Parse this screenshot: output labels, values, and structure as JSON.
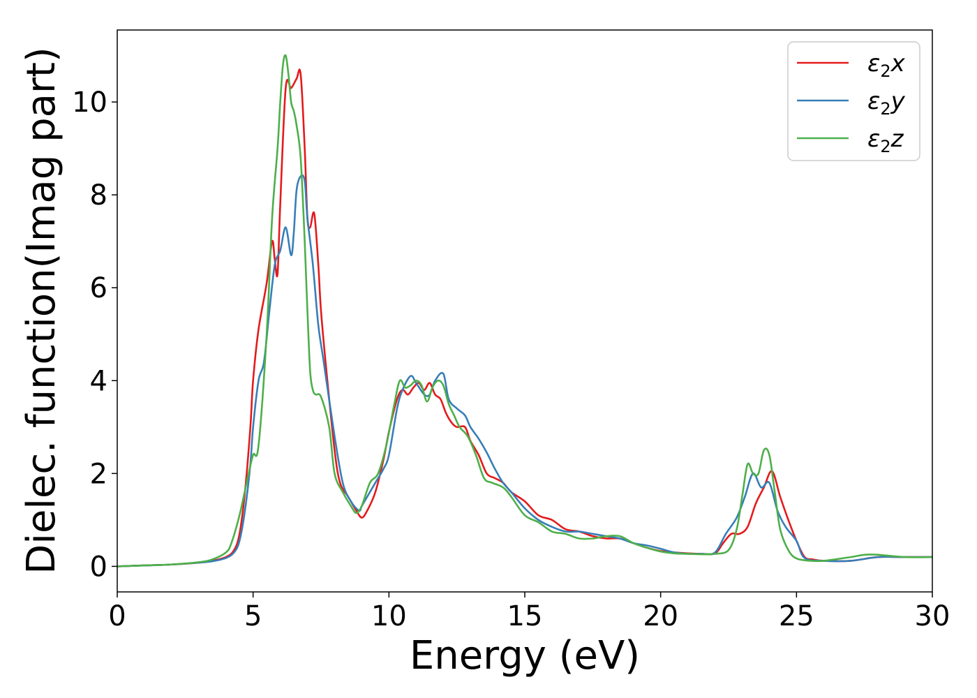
{
  "chart_data": {
    "type": "line",
    "title": "",
    "xlabel": "Energy (eV)",
    "ylabel": "Dielec. function(Imag part)",
    "xlim": [
      0,
      30
    ],
    "ylim": [
      -0.55,
      11.55
    ],
    "xticks": [
      0,
      5,
      10,
      15,
      20,
      25,
      30
    ],
    "yticks": [
      0,
      2,
      4,
      6,
      8,
      10
    ],
    "grid": false,
    "legend_position": "top-right",
    "series": [
      {
        "name": "ε₂x",
        "legend_base": "ε",
        "legend_sub": "2",
        "legend_suffix": "x",
        "color": "#e41a1c",
        "x": [
          0,
          1,
          2,
          3,
          3.5,
          4,
          4.3,
          4.5,
          4.7,
          4.9,
          5.0,
          5.2,
          5.5,
          5.7,
          5.8,
          5.9,
          6.0,
          6.2,
          6.4,
          6.6,
          6.75,
          6.9,
          7.0,
          7.1,
          7.25,
          7.4,
          7.5,
          7.7,
          8.0,
          8.2,
          8.5,
          8.8,
          9.0,
          9.2,
          9.5,
          9.8,
          10.0,
          10.3,
          10.5,
          10.7,
          10.9,
          11.1,
          11.3,
          11.5,
          11.7,
          11.9,
          12.1,
          12.3,
          12.5,
          12.8,
          13.0,
          13.3,
          13.6,
          13.9,
          14.2,
          14.5,
          15.0,
          15.5,
          16.0,
          16.5,
          17.0,
          17.5,
          18.0,
          18.5,
          19.0,
          19.5,
          20.0,
          20.5,
          21.0,
          21.5,
          22.0,
          22.3,
          22.6,
          22.9,
          23.2,
          23.5,
          23.8,
          24.1,
          24.4,
          24.7,
          25.0,
          25.3,
          25.6,
          26.0,
          27.0,
          28.0,
          29.0,
          30.0
        ],
        "y": [
          0,
          0.02,
          0.04,
          0.08,
          0.12,
          0.2,
          0.35,
          0.7,
          1.6,
          3.0,
          4.0,
          5.1,
          6.1,
          7.0,
          6.6,
          6.3,
          7.8,
          10.3,
          10.3,
          10.5,
          10.6,
          9.0,
          7.5,
          7.3,
          7.6,
          6.5,
          5.5,
          4.2,
          2.5,
          1.8,
          1.5,
          1.2,
          1.05,
          1.2,
          1.6,
          2.3,
          2.9,
          3.6,
          3.8,
          3.7,
          3.85,
          3.95,
          3.8,
          3.95,
          3.7,
          3.6,
          3.3,
          3.1,
          3.0,
          3.0,
          2.7,
          2.4,
          2.0,
          1.9,
          1.8,
          1.6,
          1.4,
          1.1,
          1.0,
          0.8,
          0.75,
          0.65,
          0.6,
          0.6,
          0.5,
          0.4,
          0.33,
          0.3,
          0.28,
          0.27,
          0.28,
          0.5,
          0.7,
          0.7,
          0.85,
          1.35,
          1.7,
          2.05,
          1.5,
          1.0,
          0.55,
          0.2,
          0.15,
          0.12,
          0.12,
          0.2,
          0.2,
          0.2
        ]
      },
      {
        "name": "ε₂y",
        "legend_base": "ε",
        "legend_sub": "2",
        "legend_suffix": "y",
        "color": "#377eb8",
        "x": [
          0,
          1,
          2,
          3,
          3.5,
          4,
          4.3,
          4.5,
          4.7,
          4.9,
          5.0,
          5.2,
          5.4,
          5.6,
          5.8,
          6.0,
          6.2,
          6.4,
          6.5,
          6.6,
          6.75,
          6.9,
          7.0,
          7.2,
          7.4,
          7.6,
          8.0,
          8.3,
          8.6,
          8.9,
          9.0,
          9.2,
          9.5,
          9.8,
          10.0,
          10.3,
          10.5,
          10.8,
          11.0,
          11.3,
          11.5,
          11.7,
          12.0,
          12.2,
          12.5,
          12.8,
          13.0,
          13.3,
          13.6,
          13.9,
          14.2,
          14.5,
          15.0,
          15.5,
          16.0,
          16.5,
          17.0,
          17.5,
          18.0,
          18.5,
          19.0,
          19.5,
          20.0,
          20.5,
          21.0,
          21.5,
          22.0,
          22.4,
          22.8,
          23.1,
          23.4,
          23.7,
          24.0,
          24.3,
          24.6,
          25.0,
          25.3,
          26.0,
          27.0,
          28.0,
          29.0,
          30.0
        ],
        "y": [
          0,
          0.02,
          0.04,
          0.08,
          0.11,
          0.18,
          0.3,
          0.55,
          1.2,
          2.2,
          3.0,
          4.0,
          4.4,
          5.5,
          6.5,
          6.8,
          7.3,
          6.7,
          7.2,
          8.1,
          8.4,
          8.3,
          7.5,
          6.5,
          5.2,
          4.4,
          2.8,
          1.8,
          1.4,
          1.2,
          1.3,
          1.5,
          1.8,
          2.1,
          2.4,
          3.4,
          3.8,
          4.1,
          3.95,
          3.7,
          3.7,
          4.0,
          4.15,
          3.6,
          3.4,
          3.25,
          3.0,
          2.75,
          2.45,
          2.1,
          1.8,
          1.6,
          1.25,
          1.0,
          0.85,
          0.75,
          0.75,
          0.7,
          0.65,
          0.6,
          0.5,
          0.45,
          0.38,
          0.3,
          0.27,
          0.27,
          0.3,
          0.7,
          1.05,
          1.5,
          2.0,
          1.7,
          1.8,
          1.2,
          0.85,
          0.55,
          0.18,
          0.12,
          0.12,
          0.2,
          0.2,
          0.2
        ]
      },
      {
        "name": "ε₂z",
        "legend_base": "ε",
        "legend_sub": "2",
        "legend_suffix": "z",
        "color": "#4daf4a",
        "x": [
          0,
          1,
          2,
          3,
          3.5,
          4,
          4.2,
          4.5,
          4.8,
          5.0,
          5.2,
          5.5,
          5.7,
          5.9,
          6.0,
          6.1,
          6.2,
          6.3,
          6.4,
          6.5,
          6.6,
          6.75,
          6.9,
          7.0,
          7.1,
          7.2,
          7.3,
          7.5,
          7.8,
          8.0,
          8.3,
          8.6,
          8.8,
          9.0,
          9.3,
          9.6,
          9.9,
          10.2,
          10.4,
          10.6,
          10.8,
          11.0,
          11.2,
          11.4,
          11.6,
          11.8,
          12.0,
          12.2,
          12.4,
          12.6,
          12.9,
          13.2,
          13.5,
          13.8,
          14.2,
          14.5,
          15.0,
          15.5,
          16.0,
          16.5,
          17.0,
          17.5,
          18.0,
          18.5,
          19.0,
          19.5,
          20.0,
          20.5,
          21.0,
          21.5,
          22.0,
          22.5,
          22.8,
          23.0,
          23.2,
          23.4,
          23.6,
          23.8,
          24.0,
          24.2,
          24.4,
          24.7,
          25.0,
          25.5,
          26.0,
          27.0,
          27.5,
          28.0,
          29.0,
          30.0
        ],
        "y": [
          0,
          0.02,
          0.04,
          0.09,
          0.15,
          0.3,
          0.5,
          1.1,
          1.9,
          2.4,
          2.6,
          5.0,
          7.5,
          9.0,
          10.0,
          10.8,
          11.0,
          10.6,
          10.0,
          9.8,
          9.5,
          8.8,
          7.0,
          5.5,
          4.2,
          3.8,
          3.7,
          3.65,
          3.0,
          2.0,
          1.6,
          1.3,
          1.15,
          1.3,
          1.8,
          2.0,
          2.6,
          3.5,
          4.0,
          3.85,
          3.9,
          4.0,
          3.9,
          3.55,
          3.85,
          4.0,
          3.9,
          3.5,
          3.25,
          3.0,
          2.8,
          2.4,
          1.9,
          1.8,
          1.7,
          1.5,
          1.1,
          0.95,
          0.75,
          0.7,
          0.6,
          0.6,
          0.65,
          0.65,
          0.5,
          0.4,
          0.32,
          0.28,
          0.27,
          0.26,
          0.27,
          0.35,
          0.8,
          1.5,
          2.2,
          2.0,
          2.0,
          2.5,
          2.4,
          1.6,
          0.8,
          0.35,
          0.17,
          0.12,
          0.12,
          0.2,
          0.25,
          0.25,
          0.2,
          0.2
        ]
      }
    ]
  }
}
